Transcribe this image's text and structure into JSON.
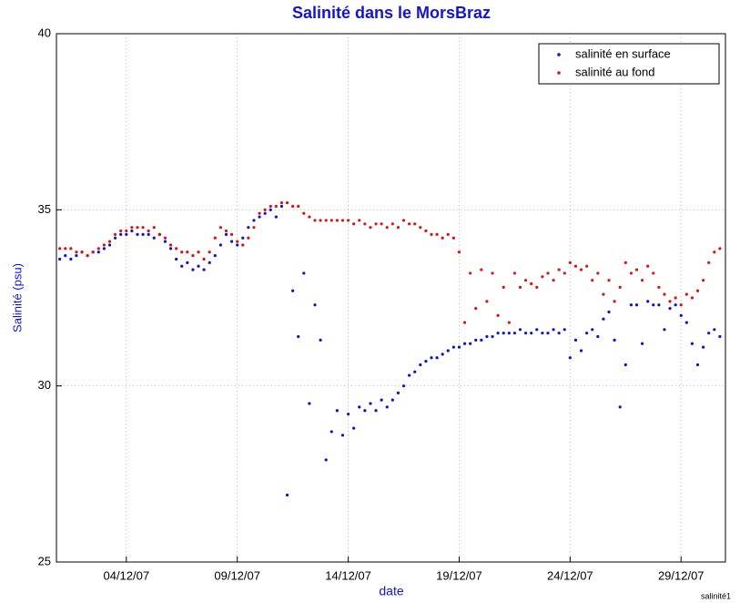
{
  "chart_data": {
    "type": "scatter",
    "title": "Salinité dans le MorsBraz",
    "xlabel": "date",
    "ylabel": "Salinité (psu)",
    "footer": "salinité1",
    "xlim": [
      0.85,
      31
    ],
    "ylim": [
      25,
      40
    ],
    "xticks": [
      {
        "value": 4,
        "label": "04/12/07"
      },
      {
        "value": 9,
        "label": "09/12/07"
      },
      {
        "value": 14,
        "label": "14/12/07"
      },
      {
        "value": 19,
        "label": "19/12/07"
      },
      {
        "value": 24,
        "label": "24/12/07"
      },
      {
        "value": 29,
        "label": "29/12/07"
      }
    ],
    "yticks": [
      25,
      30,
      35,
      40
    ],
    "grid": true,
    "legend": "upper right",
    "x": [
      1,
      1.25,
      1.5,
      1.75,
      2,
      2.25,
      2.5,
      2.75,
      3,
      3.25,
      3.5,
      3.75,
      4,
      4.25,
      4.5,
      4.75,
      5,
      5.25,
      5.5,
      5.75,
      6,
      6.25,
      6.5,
      6.75,
      7,
      7.25,
      7.5,
      7.75,
      8,
      8.25,
      8.5,
      8.75,
      9,
      9.25,
      9.5,
      9.75,
      10,
      10.25,
      10.5,
      10.75,
      11,
      11.25,
      11.5,
      11.75,
      12,
      12.25,
      12.5,
      12.75,
      13,
      13.25,
      13.5,
      13.75,
      14,
      14.25,
      14.5,
      14.75,
      15,
      15.25,
      15.5,
      15.75,
      16,
      16.25,
      16.5,
      16.75,
      17,
      17.25,
      17.5,
      17.75,
      18,
      18.25,
      18.5,
      18.75,
      19,
      19.25,
      19.5,
      19.75,
      20,
      20.25,
      20.5,
      20.75,
      21,
      21.25,
      21.5,
      21.75,
      22,
      22.25,
      22.5,
      22.75,
      23,
      23.25,
      23.5,
      23.75,
      24,
      24.25,
      24.5,
      24.75,
      25,
      25.25,
      25.5,
      25.75,
      26,
      26.25,
      26.5,
      26.75,
      27,
      27.25,
      27.5,
      27.75,
      28,
      28.25,
      28.5,
      28.75,
      29,
      29.25,
      29.5,
      29.75,
      30,
      30.25,
      30.5,
      30.75
    ],
    "series": [
      {
        "name": "salinité en surface",
        "color": "#1010d0",
        "values": [
          33.6,
          33.7,
          33.6,
          33.7,
          33.8,
          33.7,
          33.8,
          33.8,
          33.9,
          34.0,
          34.2,
          34.3,
          34.3,
          34.4,
          34.3,
          34.3,
          34.3,
          34.2,
          34.3,
          34.1,
          33.9,
          33.6,
          33.4,
          33.5,
          33.3,
          33.4,
          33.3,
          33.5,
          33.7,
          34.0,
          34.3,
          34.1,
          34.0,
          34.2,
          34.5,
          34.7,
          34.8,
          34.9,
          35.0,
          34.8,
          35.1,
          26.9,
          32.7,
          31.4,
          33.2,
          29.5,
          32.3,
          31.3,
          27.9,
          28.7,
          29.3,
          28.6,
          29.2,
          28.8,
          29.4,
          29.3,
          29.5,
          29.3,
          29.6,
          29.4,
          29.6,
          29.8,
          30.0,
          30.3,
          30.4,
          30.6,
          30.7,
          30.8,
          30.8,
          30.9,
          31.0,
          31.1,
          31.1,
          31.2,
          31.2,
          31.3,
          31.3,
          31.4,
          31.4,
          31.5,
          31.5,
          31.5,
          31.5,
          31.6,
          31.5,
          31.5,
          31.6,
          31.5,
          31.5,
          31.6,
          31.5,
          31.6,
          30.8,
          31.3,
          31.0,
          31.5,
          31.6,
          31.4,
          31.9,
          32.1,
          31.3,
          29.4,
          30.6,
          32.3,
          32.3,
          31.2,
          32.4,
          32.3,
          32.3,
          31.6,
          32.2,
          32.3,
          32.0,
          31.8,
          31.2,
          30.6,
          31.1,
          31.5,
          31.6,
          31.4
        ]
      },
      {
        "name": "salinité au fond",
        "color": "#e01010",
        "values": [
          33.9,
          33.9,
          33.9,
          33.8,
          33.8,
          33.7,
          33.8,
          33.9,
          34.0,
          34.1,
          34.3,
          34.4,
          34.4,
          34.5,
          34.5,
          34.5,
          34.4,
          34.5,
          34.3,
          34.2,
          34.0,
          33.9,
          33.8,
          33.8,
          33.7,
          33.8,
          33.6,
          33.8,
          34.2,
          34.5,
          34.4,
          34.3,
          34.1,
          34.0,
          34.2,
          34.5,
          34.9,
          35.0,
          35.1,
          35.1,
          35.2,
          35.2,
          35.1,
          35.1,
          34.9,
          34.8,
          34.7,
          34.7,
          34.7,
          34.7,
          34.7,
          34.7,
          34.7,
          34.6,
          34.7,
          34.6,
          34.5,
          34.6,
          34.6,
          34.5,
          34.6,
          34.5,
          34.7,
          34.6,
          34.6,
          34.5,
          34.4,
          34.3,
          34.3,
          34.2,
          34.3,
          34.2,
          33.8,
          31.8,
          33.2,
          32.2,
          33.3,
          32.4,
          33.2,
          32.0,
          32.8,
          31.8,
          33.2,
          32.8,
          33.0,
          32.9,
          32.8,
          33.1,
          33.2,
          33.0,
          33.3,
          33.2,
          33.5,
          33.4,
          33.3,
          33.4,
          33.0,
          33.2,
          32.6,
          33.0,
          32.4,
          32.8,
          33.5,
          33.2,
          33.3,
          33.0,
          33.4,
          33.2,
          32.8,
          32.6,
          32.4,
          32.5,
          32.3,
          32.6,
          32.5,
          32.7,
          33.0,
          33.5,
          33.8,
          33.9
        ]
      }
    ]
  }
}
